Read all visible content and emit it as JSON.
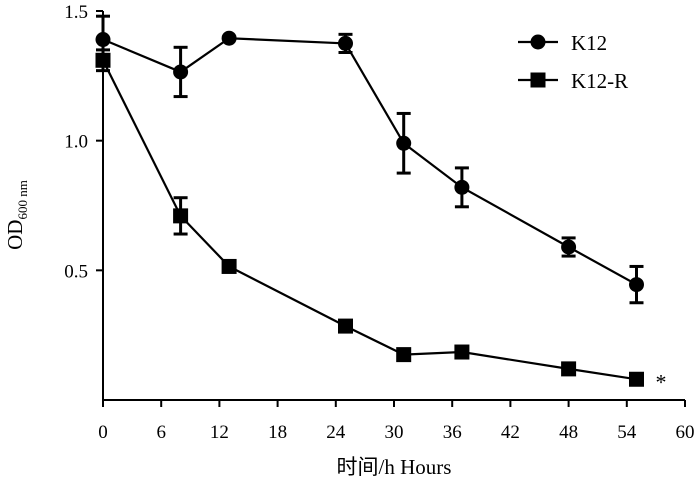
{
  "chart_data": {
    "type": "line",
    "xlabel": "时间/h Hours",
    "ylabel_main": "OD",
    "ylabel_sub": "600 nm",
    "xlim": [
      0,
      60
    ],
    "ylim": [
      0.0,
      1.5
    ],
    "x_ticks": [
      0,
      6,
      12,
      18,
      24,
      30,
      36,
      42,
      48,
      54,
      60
    ],
    "y_ticks": [
      0.5,
      1.0,
      1.5
    ],
    "y_tick_labels": [
      "0.5",
      "1.0",
      "1.5"
    ],
    "grid": false,
    "legend_position": "top-right",
    "x": [
      0,
      8,
      13,
      25,
      31,
      37,
      48,
      55
    ],
    "series": [
      {
        "name": "K12",
        "marker": "circle",
        "values": [
          1.39,
          1.265,
          1.395,
          1.375,
          0.99,
          0.82,
          0.59,
          0.445
        ],
        "errors": [
          0.09,
          0.095,
          0.0,
          0.035,
          0.115,
          0.075,
          0.035,
          0.07
        ]
      },
      {
        "name": "K12-R",
        "marker": "square",
        "values": [
          1.31,
          0.71,
          0.515,
          0.285,
          0.175,
          0.185,
          0.12,
          0.08
        ],
        "errors": [
          0.04,
          0.07,
          0.0,
          0.0,
          0.0,
          0.0,
          0.0,
          0.0
        ]
      }
    ],
    "annotations": [
      {
        "text": "*",
        "series": "K12-R",
        "x": 55
      }
    ]
  }
}
